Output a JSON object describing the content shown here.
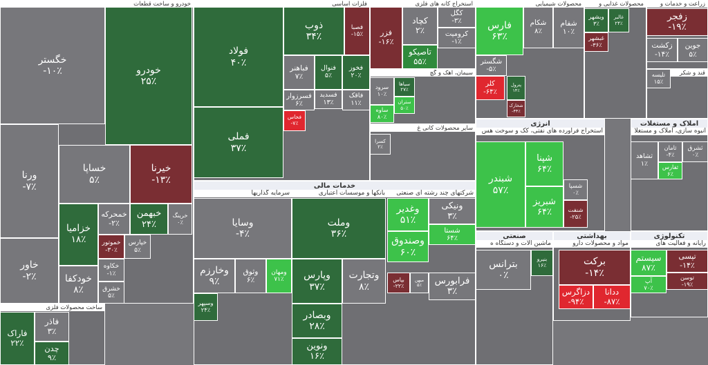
{
  "sectors": [
    {
      "title": "خودرو و ساخت قطعات",
      "tiles": [
        {
          "name": "خگستر",
          "change": "-۱۰٪",
          "color": "#77777b"
        },
        {
          "name": "خودرو",
          "change": "۲۵٪",
          "color": "#2f6b3b"
        },
        {
          "name": "ورنا",
          "change": "-۷٪",
          "color": "#77777b"
        },
        {
          "name": "خاور",
          "change": "-۲٪",
          "color": "#77777b"
        },
        {
          "name": "خساپا",
          "change": "۵٪",
          "color": "#77777b"
        },
        {
          "name": "خیرنا",
          "change": "-۱۳٪",
          "color": "#7a2e33"
        },
        {
          "name": "خزامیا",
          "change": "۱۸٪",
          "color": "#2f6b3b"
        },
        {
          "name": "خمحرکه",
          "change": "-۲٪",
          "color": "#77777b"
        },
        {
          "name": "خبهمن",
          "change": "۲۴٪",
          "color": "#2f6b3b"
        },
        {
          "name": "خرینگ",
          "change": "۰٪",
          "color": "#77777b"
        },
        {
          "name": "خودکفا",
          "change": "۸٪",
          "color": "#77777b"
        },
        {
          "name": "خموتور",
          "change": "-۳۰٪",
          "color": "#7a2e33"
        },
        {
          "name": "خپارس",
          "change": "۵٪",
          "color": "#77777b"
        },
        {
          "name": "خکاوه",
          "change": "-۱٪",
          "color": "#77777b"
        },
        {
          "name": "خشرق",
          "change": "۵٪",
          "color": "#77777b"
        }
      ]
    },
    {
      "title": "ساخت محصولات فلزی",
      "tiles": [
        {
          "name": "فاراک",
          "change": "۲۲٪",
          "color": "#2f6b3b"
        },
        {
          "name": "فاذر",
          "change": "۳٪",
          "color": "#77777b"
        },
        {
          "name": "چدن",
          "change": "۹٪",
          "color": "#2f6b3b"
        }
      ]
    },
    {
      "title": "فلزات اساسی",
      "tiles": [
        {
          "name": "فولاد",
          "change": "۴۰٪",
          "color": "#2f6b3b"
        },
        {
          "name": "فملی",
          "change": "۳۷٪",
          "color": "#2f6b3b"
        },
        {
          "name": "ذوب",
          "change": "۳۴٪",
          "color": "#2f6b3b"
        },
        {
          "name": "فصبا",
          "change": "-۱۵٪",
          "color": "#7a2e33"
        },
        {
          "name": "فباهنر",
          "change": "۷٪",
          "color": "#77777b"
        },
        {
          "name": "فنوال",
          "change": "۵٪",
          "color": "#2f6b3b"
        },
        {
          "name": "فخوز",
          "change": "۲۰٪",
          "color": "#2f6b3b"
        },
        {
          "name": "فسرزوار",
          "change": "۶٪",
          "color": "#77777b"
        },
        {
          "name": "فسدید",
          "change": "۱۳٪",
          "color": "#77777b"
        },
        {
          "name": "فاقک",
          "change": "۱۱٪",
          "color": "#77777b"
        },
        {
          "name": "فخاس",
          "change": "-۷٪",
          "color": "#e0272f"
        }
      ]
    },
    {
      "title": "استخراج کانه های فلزی",
      "tiles": [
        {
          "name": "فزر",
          "change": "-۱۶٪",
          "color": "#7a2e33"
        },
        {
          "name": "کچاد",
          "change": "۲٪",
          "color": "#77777b"
        },
        {
          "name": "کگل",
          "change": "-۳٪",
          "color": "#77777b"
        },
        {
          "name": "کرومیت",
          "change": "-۱٪",
          "color": "#77777b"
        },
        {
          "name": "تاصیکو",
          "change": "۵۵٪",
          "color": "#2f8a3c"
        }
      ]
    },
    {
      "title": "سیمان، آهک و گچ",
      "tiles": [
        {
          "name": "سرود",
          "change": "۱۰٪",
          "color": "#77777b"
        },
        {
          "name": "سیاها",
          "change": "۲۷٪",
          "color": "#2f6b3b"
        },
        {
          "name": "ستران",
          "change": "۵۰٪",
          "color": "#3dc24a"
        },
        {
          "name": "ساوه",
          "change": "۸۰٪",
          "color": "#3dc24a"
        }
      ]
    },
    {
      "title": "محصولات شیمیایی",
      "tiles": [
        {
          "name": "فارس",
          "change": "۶۳٪",
          "color": "#3dc24a"
        },
        {
          "name": "شکام",
          "change": "۸٪",
          "color": "#77777b"
        },
        {
          "name": "شفام",
          "change": "۱۰٪",
          "color": "#77777b"
        },
        {
          "name": "شگستر",
          "change": "-۵٪",
          "color": "#77777b"
        },
        {
          "name": "کلر",
          "change": "-۶۴٪",
          "color": "#e0272f"
        },
        {
          "name": "پترول",
          "change": "۱۴٪",
          "color": "#2f6b3b"
        },
        {
          "name": "شخارک",
          "change": "-۴۴٪",
          "color": "#7a2e33"
        }
      ]
    },
    {
      "title": "محصولات غذایی و",
      "tiles": [
        {
          "name": "وبشهر",
          "change": "۳٪",
          "color": "#2f6b3b"
        },
        {
          "name": "غالبر",
          "change": "۲۴٪",
          "color": "#2f6b3b"
        },
        {
          "name": "غبشهر",
          "change": "-۳۶٪",
          "color": "#7a2e33"
        }
      ]
    },
    {
      "title": "زراعت و خدمات و",
      "tiles": [
        {
          "name": "زفجر",
          "change": "-۱۹٪",
          "color": "#7a2e33"
        },
        {
          "name": "زکشت",
          "change": "-۱۴٪",
          "color": "#77777b"
        },
        {
          "name": "جوین",
          "change": "۵٪",
          "color": "#77777b"
        }
      ]
    },
    {
      "title": "قند و شکر",
      "tiles": [
        {
          "name": "تلیسه",
          "change": "۱۵٪",
          "color": "#77777b"
        }
      ]
    },
    {
      "title": "انرژی",
      "subtitles": [
        "استخراج فراورده های نفتی، کک و سوخت هس"
      ],
      "tiles": [
        {
          "name": "شبندر",
          "change": "۵۷٪",
          "color": "#3dc24a"
        },
        {
          "name": "شپنا",
          "change": "۶۴٪",
          "color": "#3dc24a"
        },
        {
          "name": "شبریز",
          "change": "۶۴٪",
          "color": "#3dc24a"
        },
        {
          "name": "شسپا",
          "change": "۰٪",
          "color": "#77777b"
        },
        {
          "name": "شنفت",
          "change": "-۲۵٪",
          "color": "#7a2e33"
        }
      ]
    },
    {
      "title": "املاک و مستغلات",
      "subtitles": [
        "انبوه سازی، املاک و مستغلا"
      ],
      "tiles": [
        {
          "name": "ثشاهد",
          "change": "۱٪",
          "color": "#77777b"
        },
        {
          "name": "ثامان",
          "change": "-۴٪",
          "color": "#77777b"
        },
        {
          "name": "ثشرق",
          "change": "۰٪",
          "color": "#77777b"
        },
        {
          "name": "ثفارس",
          "change": "۶٪",
          "color": "#3dc24a"
        }
      ]
    },
    {
      "title": "خدمات مالی",
      "subtitles": [
        "سرمایه گذاریها",
        "بانکها و موسسات اعتباری",
        "شرکتهای چند رشته ای صنعتی"
      ],
      "tiles": [
        {
          "name": "وسایا",
          "change": "-۴٪",
          "color": "#77777b"
        },
        {
          "name": "وملت",
          "change": "۳۶٪",
          "color": "#2f6b3b"
        },
        {
          "name": "وغدیر",
          "change": "۵۱٪",
          "color": "#3dc24a"
        },
        {
          "name": "ونیکی",
          "change": "۳٪",
          "color": "#77777b"
        },
        {
          "name": "وصندوق",
          "change": "۶۰٪",
          "color": "#3dc24a"
        },
        {
          "name": "شستا",
          "change": "۶۴٪",
          "color": "#3dc24a"
        },
        {
          "name": "وپارس",
          "change": "۳۷٪",
          "color": "#2f6b3b"
        },
        {
          "name": "وتجارت",
          "change": "۸٪",
          "color": "#77777b"
        },
        {
          "name": "وبصادر",
          "change": "۲۸٪",
          "color": "#2f6b3b"
        },
        {
          "name": "وخارزم",
          "change": "۹٪",
          "color": "#77777b"
        },
        {
          "name": "وثوق",
          "change": "۶٪",
          "color": "#77777b"
        },
        {
          "name": "ومهان",
          "change": "۷۱٪",
          "color": "#3dc24a"
        },
        {
          "name": "وسپهر",
          "change": "۲۴٪",
          "color": "#2f6b3b"
        },
        {
          "name": "ونوین",
          "change": "۱۶٪",
          "color": "#2f6b3b"
        },
        {
          "name": "فرابورس",
          "change": "۳٪",
          "color": "#77777b"
        },
        {
          "name": "بپاس",
          "change": "-۲۲٪",
          "color": "#7a2e33"
        },
        {
          "name": "میهن",
          "change": "۵٪",
          "color": "#77777b"
        }
      ]
    },
    {
      "title": "صنعتی",
      "subtitles": [
        "ماشین آلات و دستگاه ه"
      ],
      "tiles": [
        {
          "name": "بترانس",
          "change": "۰٪",
          "color": "#77777b"
        },
        {
          "name": "بنیرو",
          "change": "۱۶٪",
          "color": "#2f6b3b"
        }
      ]
    },
    {
      "title": "بهداشتی",
      "subtitles": [
        "مواد و محصولات دارو"
      ],
      "tiles": [
        {
          "name": "برکت",
          "change": "-۱۴٪",
          "color": "#7a2e33"
        },
        {
          "name": "دزاگرس",
          "change": "-۹۴٪",
          "color": "#e0272f"
        },
        {
          "name": "ددانا",
          "change": "-۸۷٪",
          "color": "#e0272f"
        }
      ]
    },
    {
      "title": "تکنولوژی",
      "subtitles": [
        "رایانه و فعالیت های"
      ],
      "tiles": [
        {
          "name": "سیستم",
          "change": "۸۷٪",
          "color": "#3dc24a"
        },
        {
          "name": "آپ",
          "change": "۷۰٪",
          "color": "#3dc24a"
        },
        {
          "name": "تپسی",
          "change": "-۱۴٪",
          "color": "#7a2e33"
        },
        {
          "name": "توسن",
          "change": "-۱۹٪",
          "color": "#7a2e33"
        }
      ]
    },
    {
      "title": "سایر محصولات کانی غ",
      "tiles": [
        {
          "name": "کسرا",
          "change": "۲٪",
          "color": "#77777b"
        }
      ]
    }
  ]
}
